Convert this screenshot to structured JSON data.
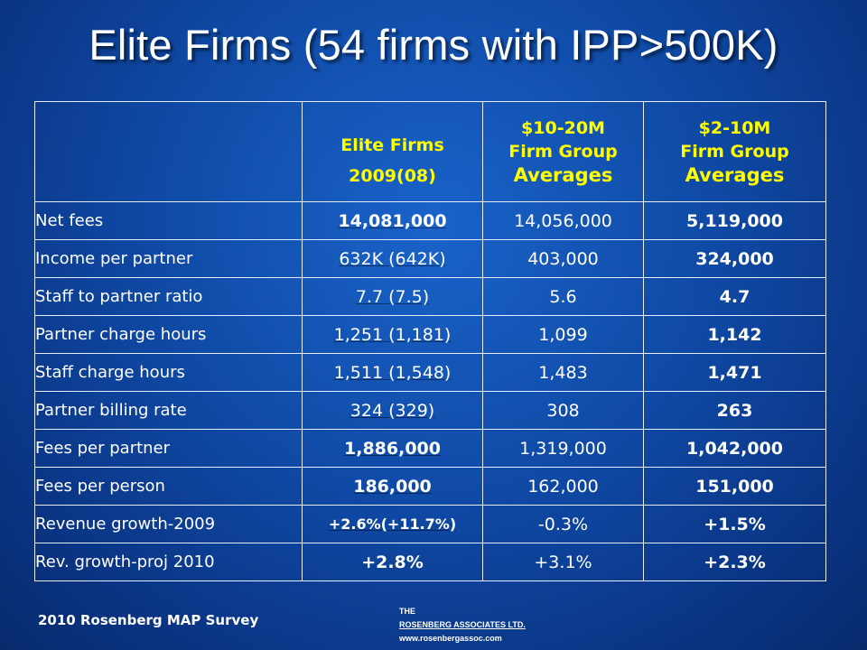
{
  "title": "Elite Firms (54 firms with IPP>500K)",
  "table": {
    "headers": [
      {
        "lines": [
          "Elite Firms",
          "2009(08)"
        ]
      },
      {
        "lines": [
          "$10-20M",
          "Firm Group",
          "Averages"
        ]
      },
      {
        "lines": [
          "$2-10M",
          "Firm Group",
          "Averages"
        ]
      }
    ],
    "rows": [
      {
        "label": "Net fees",
        "values": [
          "14,081,000",
          "14,056,000",
          "5,119,000"
        ]
      },
      {
        "label": "Income per partner",
        "values": [
          "632K (642K)",
          "403,000",
          "324,000"
        ]
      },
      {
        "label": "Staff to partner ratio",
        "values": [
          "7.7 (7.5)",
          "5.6",
          "4.7"
        ]
      },
      {
        "label": "Partner charge hours",
        "values": [
          "1,251 (1,181)",
          "1,099",
          "1,142"
        ]
      },
      {
        "label": "Staff charge hours",
        "values": [
          "1,511 (1,548)",
          "1,483",
          "1,471"
        ]
      },
      {
        "label": "Partner billing rate",
        "values": [
          "324 (329)",
          "308",
          "263"
        ]
      },
      {
        "label": "Fees per partner",
        "values": [
          "1,886,000",
          "1,319,000",
          "1,042,000"
        ]
      },
      {
        "label": "Fees per person",
        "values": [
          "186,000",
          "162,000",
          "151,000"
        ]
      },
      {
        "label": "Revenue growth-2009",
        "values": [
          "+2.6%(+11.7%)",
          "-0.3%",
          "+1.5%"
        ]
      },
      {
        "label": "Rev. growth-proj 2010",
        "values": [
          "+2.8%",
          "+3.1%",
          "+2.3%"
        ]
      }
    ]
  },
  "footer": {
    "survey": "2010 Rosenberg MAP Survey",
    "logo_line1": "THE",
    "logo_line2": "ROSENBERG ASSOCIATES LTD.",
    "logo_line3": "www.rosenbergassoc.com"
  },
  "colors": {
    "header_text": "#ffff00",
    "body_text": "#ffffff",
    "background": "#0f4aa6"
  }
}
